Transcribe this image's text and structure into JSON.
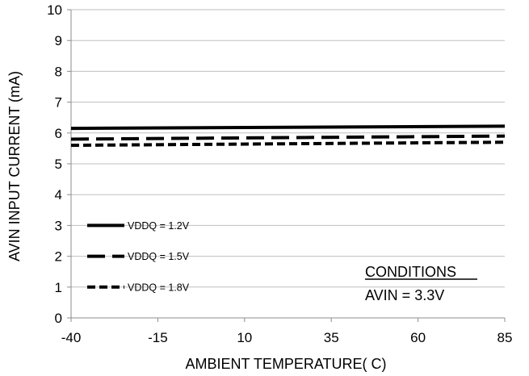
{
  "chart_data": {
    "type": "line",
    "xlabel": "AMBIENT TEMPERATURE( C)",
    "ylabel": "AVIN  INPUT CURRENT (mA)",
    "xlim": [
      -40,
      85
    ],
    "ylim": [
      0,
      10
    ],
    "x_ticks": [
      "-40",
      "-15",
      "10",
      "35",
      "60",
      "85"
    ],
    "y_ticks": [
      "0",
      "1",
      "2",
      "3",
      "4",
      "5",
      "6",
      "7",
      "8",
      "9",
      "10"
    ],
    "grid": "horizontal",
    "legend_position": "bottom-left",
    "series": [
      {
        "name": "VDDQ = 1.2V",
        "style": "solid",
        "x": [
          -40,
          85
        ],
        "y": [
          6.15,
          6.22
        ]
      },
      {
        "name": "VDDQ = 1.5V",
        "style": "long-dash",
        "x": [
          -40,
          85
        ],
        "y": [
          5.8,
          5.9
        ]
      },
      {
        "name": "VDDQ = 1.8V",
        "style": "short-dash",
        "x": [
          -40,
          85
        ],
        "y": [
          5.6,
          5.7
        ]
      }
    ],
    "annotation": {
      "title": "CONDITIONS",
      "text": "AVIN = 3.3V"
    }
  }
}
